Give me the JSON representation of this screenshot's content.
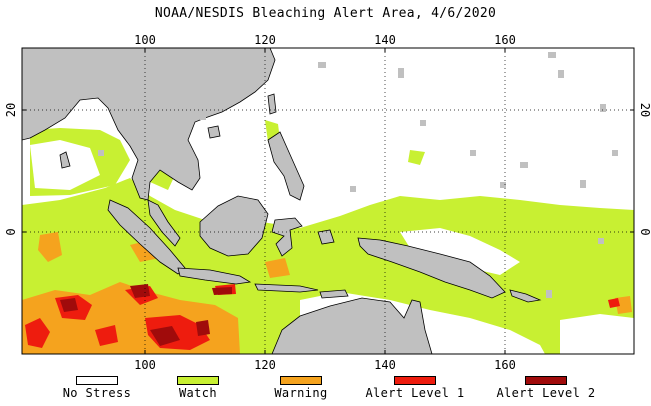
{
  "title": "NOAA/NESDIS Bleaching Alert Area, 4/6/2020",
  "axes": {
    "lon_ticks": [
      {
        "lon": 100,
        "label": "100"
      },
      {
        "lon": 120,
        "label": "120"
      },
      {
        "lon": 140,
        "label": "140"
      },
      {
        "lon": 160,
        "label": "160"
      }
    ],
    "lat_ticks": [
      {
        "lat": 20,
        "label": "20"
      },
      {
        "lat": 0,
        "label": "0"
      }
    ],
    "lon_range": [
      76,
      180
    ],
    "lat_range": [
      -20,
      31
    ],
    "grid": "dotted"
  },
  "colors": {
    "no_stress": "#ffffff",
    "watch": "#c8f032",
    "warning": "#f5a31e",
    "alert1": "#ee1c0e",
    "alert2": "#a00b0b",
    "land": "#c0c0c0",
    "ice_nodata": "#c0c0c0"
  },
  "legend": [
    {
      "label": "No Stress",
      "color": "#ffffff"
    },
    {
      "label": "Watch",
      "color": "#c8f032"
    },
    {
      "label": "Warning",
      "color": "#f5a31e"
    },
    {
      "label": "Alert Level 1",
      "color": "#ee1c0e"
    },
    {
      "label": "Alert Level 2",
      "color": "#a00b0b"
    }
  ]
}
